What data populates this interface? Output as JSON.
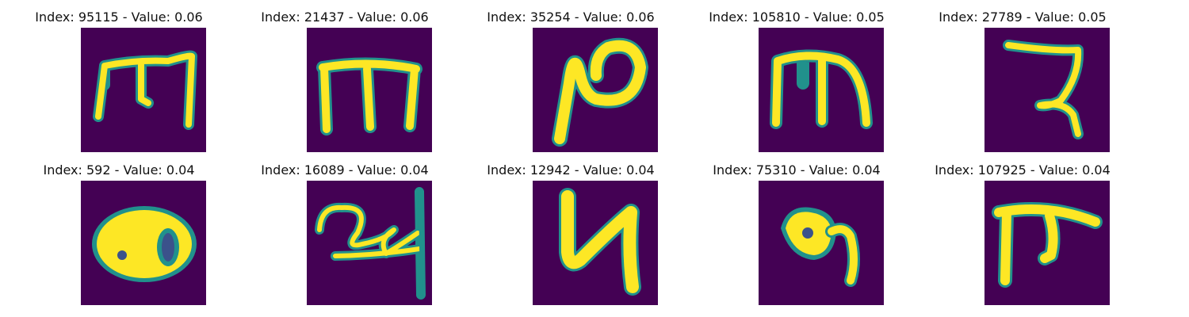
{
  "panels": [
    {
      "title": "Index: 95115 - Value: 0.06",
      "glyph": "glyph-m-hook-icon"
    },
    {
      "title": "Index: 21437 - Value: 0.06",
      "glyph": "glyph-m-icon"
    },
    {
      "title": "Index: 35254 - Value: 0.06",
      "glyph": "glyph-n-loop-icon"
    },
    {
      "title": "Index: 105810 - Value: 0.05",
      "glyph": "glyph-m-icon"
    },
    {
      "title": "Index: 27789 - Value: 0.05",
      "glyph": "glyph-z-icon"
    },
    {
      "title": "Index: 592 - Value: 0.04",
      "glyph": "glyph-80-icon"
    },
    {
      "title": "Index: 16089 - Value: 0.04",
      "glyph": "glyph-24-icon"
    },
    {
      "title": "Index: 12942 - Value: 0.04",
      "glyph": "glyph-y-icon"
    },
    {
      "title": "Index: 75310 - Value: 0.04",
      "glyph": "glyph-loop-icon"
    },
    {
      "title": "Index: 107925 - Value: 0.04",
      "glyph": "glyph-pi-icon"
    }
  ],
  "colors": {
    "background": "#440154",
    "edge": "#21918c",
    "fill": "#fde725"
  }
}
